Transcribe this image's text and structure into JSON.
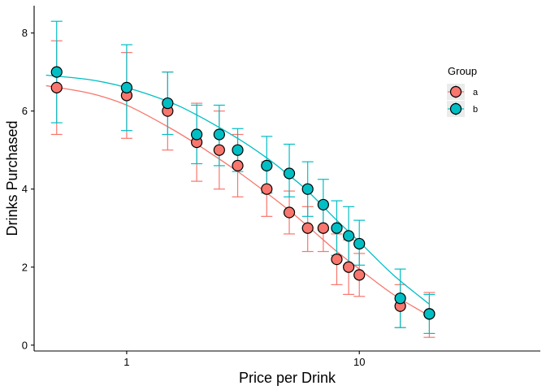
{
  "chart_data": {
    "type": "scatter",
    "title": "",
    "xlabel": "Price per Drink",
    "ylabel": "Drinks Purchased",
    "xscale": "log10",
    "xlim": [
      0.4,
      60
    ],
    "ylim": [
      -0.15,
      8.7
    ],
    "xticks": [
      1,
      10
    ],
    "xtick_labels": [
      "1",
      "10"
    ],
    "yticks": [
      0,
      2,
      4,
      6,
      8
    ],
    "ytick_labels": [
      "0",
      "2",
      "4",
      "6",
      "8"
    ],
    "grid": false,
    "legend": {
      "title": "Group",
      "position": "right"
    },
    "series": [
      {
        "name": "a",
        "color": "#F8766D",
        "x": [
          0.5,
          1,
          1.5,
          2,
          2.5,
          3,
          4,
          5,
          6,
          7,
          8,
          9,
          10,
          15,
          20
        ],
        "y": [
          6.6,
          6.4,
          6.0,
          5.2,
          5.0,
          4.6,
          4.0,
          3.4,
          3.0,
          3.0,
          2.2,
          2.0,
          1.8,
          1.0,
          0.8
        ],
        "err_lower": [
          5.4,
          5.3,
          5.0,
          4.2,
          4.0,
          3.8,
          3.3,
          2.85,
          2.4,
          2.4,
          1.55,
          1.3,
          1.25,
          0.45,
          0.2
        ],
        "err_upper": [
          7.8,
          7.5,
          7.0,
          6.2,
          6.0,
          5.4,
          4.7,
          3.95,
          3.55,
          3.6,
          2.85,
          2.7,
          2.35,
          1.55,
          1.35
        ],
        "fit": {
          "x": [
            0.45,
            0.7,
            1,
            1.5,
            2,
            3,
            4,
            5,
            6,
            8,
            10,
            14,
            20
          ],
          "y": [
            6.65,
            6.45,
            6.15,
            5.6,
            5.15,
            4.45,
            3.9,
            3.45,
            3.05,
            2.4,
            1.95,
            1.3,
            0.75
          ]
        }
      },
      {
        "name": "b",
        "color": "#00BFC4",
        "x": [
          0.5,
          1,
          1.5,
          2,
          2.5,
          3,
          4,
          5,
          6,
          7,
          8,
          9,
          10,
          15,
          20
        ],
        "y": [
          7.0,
          6.6,
          6.2,
          5.4,
          5.4,
          5.0,
          4.6,
          4.4,
          4.0,
          3.6,
          3.0,
          2.8,
          2.6,
          1.2,
          0.8
        ],
        "err_lower": [
          5.7,
          5.5,
          5.4,
          4.65,
          4.6,
          4.45,
          3.9,
          3.8,
          3.3,
          2.95,
          2.3,
          2.05,
          2.05,
          0.45,
          0.3
        ],
        "err_upper": [
          8.3,
          7.7,
          7.0,
          6.15,
          6.15,
          5.55,
          5.35,
          5.15,
          4.7,
          4.25,
          3.7,
          3.55,
          3.2,
          1.95,
          1.3
        ],
        "fit": {
          "x": [
            0.45,
            0.7,
            1,
            1.5,
            2,
            3,
            4,
            5,
            6,
            8,
            10,
            14,
            20
          ],
          "y": [
            6.92,
            6.8,
            6.6,
            6.25,
            5.9,
            5.3,
            4.8,
            4.35,
            3.95,
            3.2,
            2.65,
            1.8,
            1.05
          ]
        }
      }
    ]
  }
}
